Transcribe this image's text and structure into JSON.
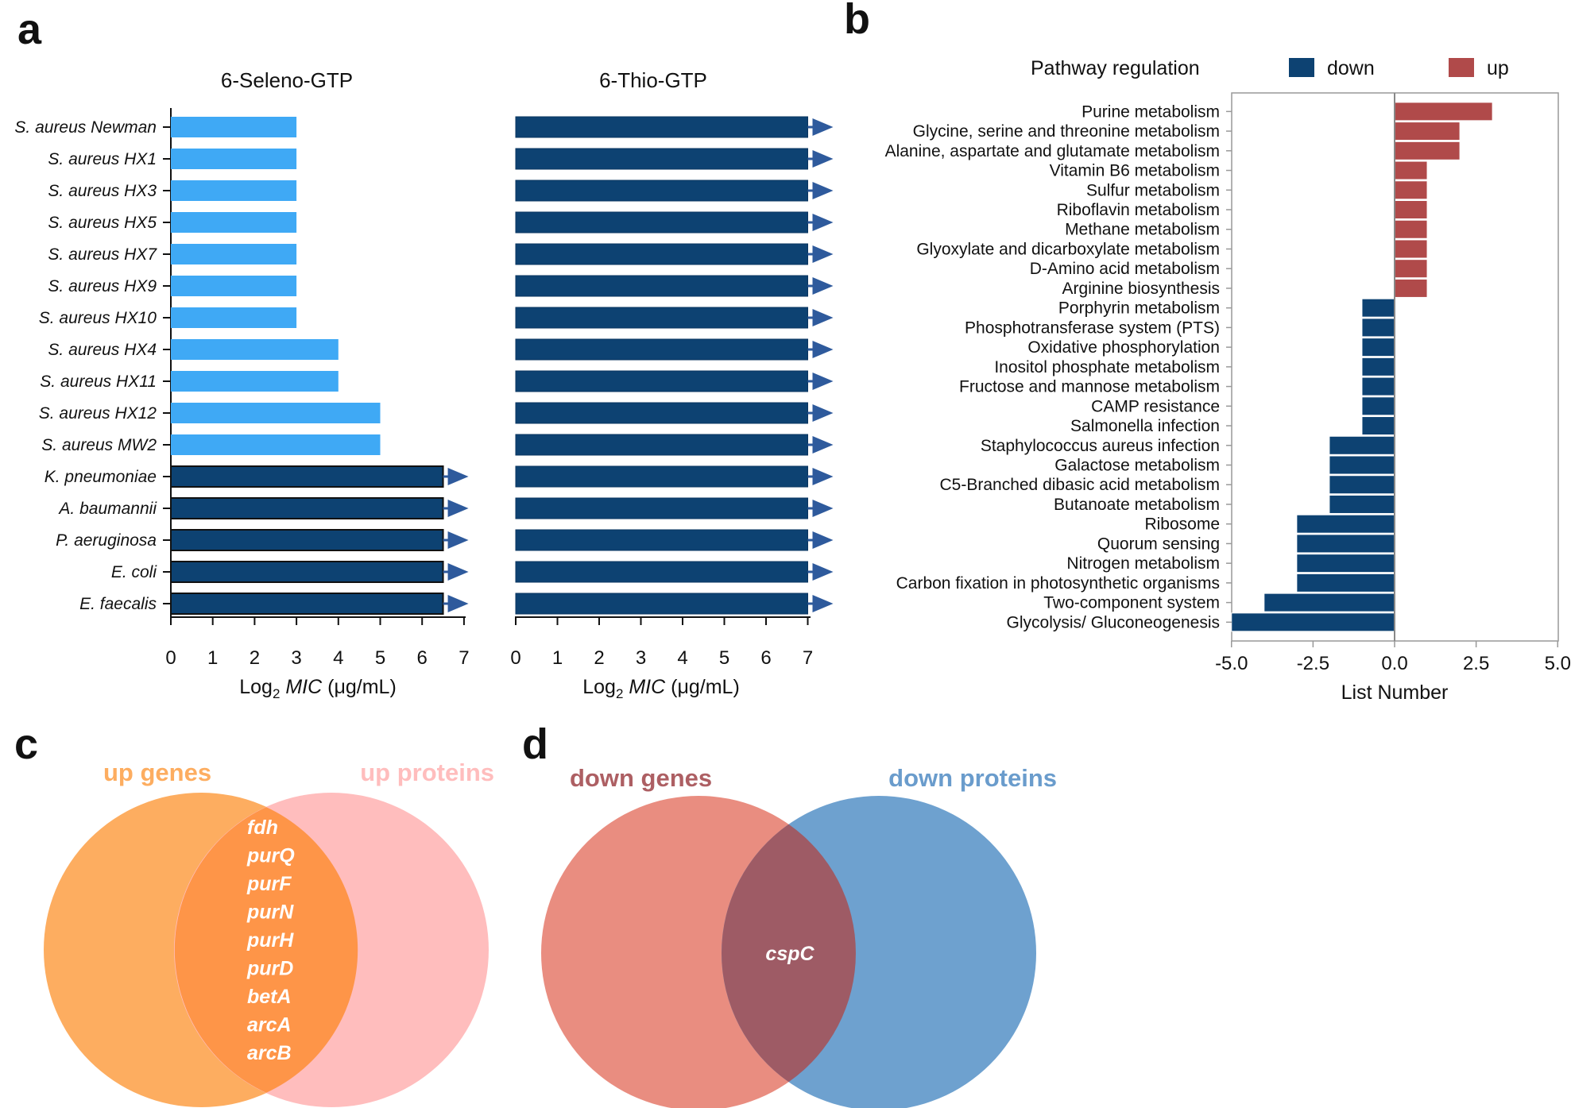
{
  "panels": {
    "a": "a",
    "b": "b",
    "c": "c",
    "d": "d"
  },
  "chart_data": [
    {
      "type": "bar",
      "orientation": "horizontal",
      "title": "6-Seleno-GTP",
      "xlabel_prefix": "Log",
      "xlabel_sub": "2",
      "xlabel_italic": "MIC",
      "xlabel_suffix": "(μg/mL)",
      "xlim": [
        0,
        7
      ],
      "xticks": [
        "0",
        "1",
        "2",
        "3",
        "4",
        "5",
        "6",
        "7"
      ],
      "categories": [
        "S. aureus Newman",
        "S. aureus HX1",
        "S. aureus HX3",
        "S. aureus HX5",
        "S. aureus HX7",
        "S. aureus HX9",
        "S. aureus HX10",
        "S. aureus HX4",
        "S. aureus HX11",
        "S. aureus HX12",
        "S. aureus MW2",
        "K. pneumoniae",
        "A. baumannii",
        "P. aeruginosa",
        "E. coli",
        "E. faecalis"
      ],
      "values": [
        3,
        3,
        3,
        3,
        3,
        3,
        3,
        4,
        4,
        5,
        5,
        6.5,
        6.5,
        6.5,
        6.5,
        6.5
      ],
      "exceeds_range": [
        false,
        false,
        false,
        false,
        false,
        false,
        false,
        false,
        false,
        false,
        false,
        true,
        true,
        true,
        true,
        true
      ],
      "colors": {
        "light": "#3fa9f5",
        "dark": "#0d4272"
      }
    },
    {
      "type": "bar",
      "orientation": "horizontal",
      "title": "6-Thio-GTP",
      "xlabel_prefix": "Log",
      "xlabel_sub": "2",
      "xlabel_italic": "MIC",
      "xlabel_suffix": "(μg/mL)",
      "xlim": [
        0,
        7
      ],
      "xticks": [
        "0",
        "1",
        "2",
        "3",
        "4",
        "5",
        "6",
        "7"
      ],
      "values": [
        7,
        7,
        7,
        7,
        7,
        7,
        7,
        7,
        7,
        7,
        7,
        7,
        7,
        7,
        7,
        7
      ],
      "exceeds_range": [
        true,
        true,
        true,
        true,
        true,
        true,
        true,
        true,
        true,
        true,
        true,
        true,
        true,
        true,
        true,
        true
      ],
      "colors": {
        "bar": "#0d4272",
        "arrow": "#2e5a9c"
      }
    },
    {
      "type": "bar",
      "orientation": "horizontal",
      "legend_title": "Pathway regulation",
      "legend": [
        {
          "name": "down",
          "color": "#0d4272"
        },
        {
          "name": "up",
          "color": "#b04a4a"
        }
      ],
      "xlabel": "List Number",
      "xlim": [
        -5,
        5
      ],
      "xticks": [
        "-5.0",
        "-2.5",
        "0.0",
        "2.5",
        "5.0"
      ],
      "categories": [
        "Purine metabolism",
        "Glycine, serine and threonine metabolism",
        "Alanine, aspartate and glutamate metabolism",
        "Vitamin B6 metabolism",
        "Sulfur metabolism",
        "Riboflavin metabolism",
        "Methane metabolism",
        "Glyoxylate and dicarboxylate metabolism",
        "D-Amino acid metabolism",
        "Arginine biosynthesis",
        "Porphyrin metabolism",
        "Phosphotransferase system (PTS)",
        "Oxidative phosphorylation",
        "Inositol phosphate metabolism",
        "Fructose and mannose metabolism",
        "CAMP resistance",
        "Salmonella infection",
        "Staphylococcus aureus infection",
        "Galactose metabolism",
        "C5-Branched dibasic acid metabolism",
        "Butanoate metabolism",
        "Ribosome",
        "Quorum sensing",
        "Nitrogen metabolism",
        "Carbon fixation in photosynthetic organisms",
        "Two-component system",
        "Glycolysis/ Gluconeogenesis"
      ],
      "values": [
        3,
        2,
        2,
        1,
        1,
        1,
        1,
        1,
        1,
        1,
        -1,
        -1,
        -1,
        -1,
        -1,
        -1,
        -1,
        -2,
        -2,
        -2,
        -2,
        -3,
        -3,
        -3,
        -3,
        -4,
        -5
      ]
    }
  ],
  "venn_c": {
    "left_label": "up genes",
    "right_label": "up proteins",
    "left_color": "#fdad60",
    "right_color": "#ffbdbd",
    "overlap_color": "#fe9548",
    "left_label_color": "#fdad60",
    "right_label_color": "#ffbdbd",
    "overlap": [
      "fdh",
      "purQ",
      "purF",
      "purN",
      "purH",
      "purD",
      "betA",
      "arcA",
      "arcB"
    ]
  },
  "venn_d": {
    "left_label": "down genes",
    "right_label": "down proteins",
    "left_color": "#e98d80",
    "right_color": "#6ea1cf",
    "overlap_color": "#9e5b65",
    "left_label_color": "#ad5f63",
    "right_label_color": "#6a9ccc",
    "overlap": [
      "cspC"
    ]
  }
}
